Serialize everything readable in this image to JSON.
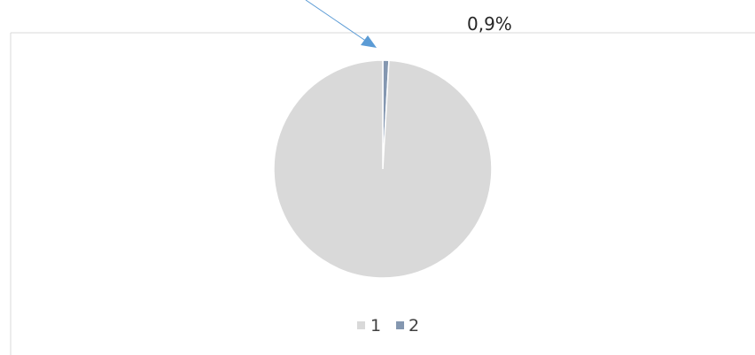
{
  "chart_data": {
    "type": "pie",
    "categories": [
      "1",
      "2"
    ],
    "values": [
      99.1,
      0.9
    ],
    "colors": [
      "#d9d9d9",
      "#8497b0"
    ],
    "data_labels": [
      "",
      "0,9%"
    ],
    "legend": {
      "position": "bottom",
      "entries": [
        "1",
        "2"
      ]
    },
    "annotation": {
      "type": "arrow",
      "color": "#5b9bd5",
      "points_to": "2"
    }
  }
}
